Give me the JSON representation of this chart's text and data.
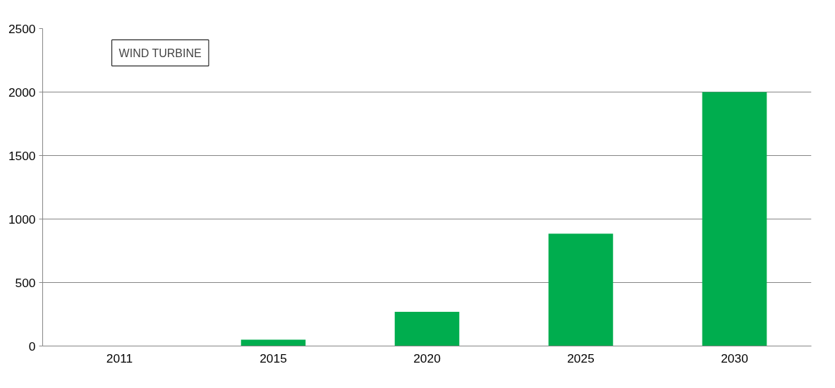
{
  "chart_data": {
    "type": "bar",
    "title": "WIND TURBINE",
    "categories": [
      "2011",
      "2015",
      "2020",
      "2025",
      "2030"
    ],
    "values": [
      0,
      50,
      270,
      885,
      2000
    ],
    "color": "#00ad4e",
    "ylim": [
      0,
      2500
    ],
    "yticks": [
      0,
      500,
      1000,
      1500,
      2000,
      2500
    ],
    "grid": "y"
  }
}
